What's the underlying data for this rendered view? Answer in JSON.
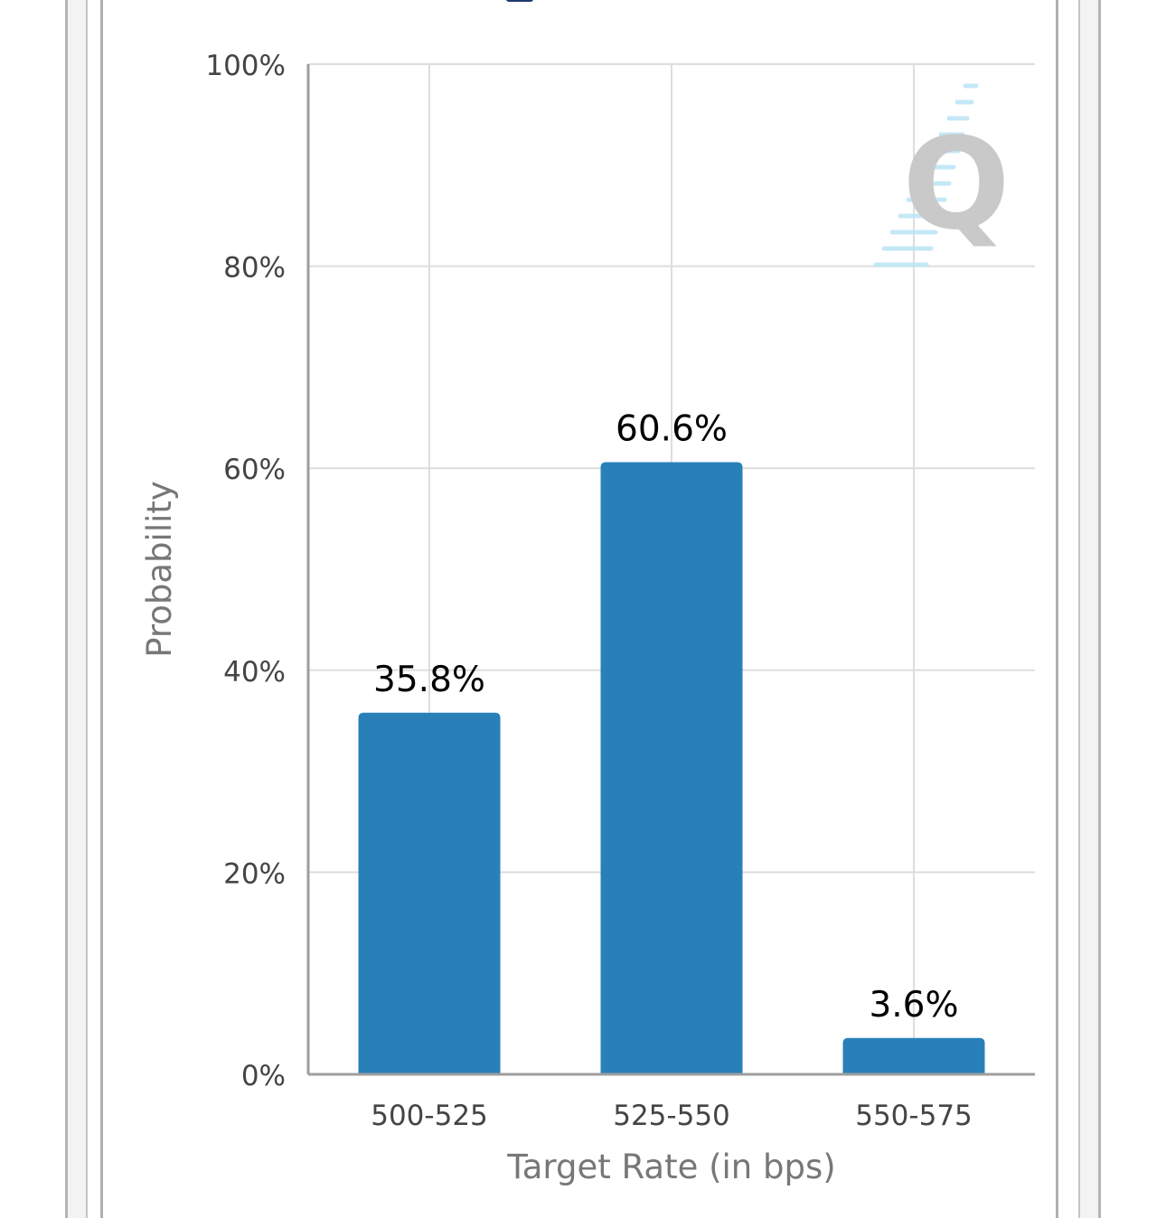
{
  "chart_data": {
    "type": "bar",
    "categories": [
      "500-525",
      "525-550",
      "550-575"
    ],
    "values": [
      35.8,
      60.6,
      3.6
    ],
    "data_labels": [
      "35.8%",
      "60.6%",
      "3.6%"
    ],
    "title": "",
    "xlabel": "Target Rate (in bps)",
    "ylabel": "Probability",
    "ylim": [
      0,
      100
    ],
    "y_ticks": [
      0,
      20,
      40,
      60,
      80,
      100
    ],
    "y_tick_labels": [
      "0%",
      "20%",
      "40%",
      "60%",
      "80%",
      "100%"
    ],
    "grid": true,
    "legend": "none",
    "colors": {
      "bar": "#2980b9",
      "grid": "#dddddd",
      "axis": "#9e9e9e",
      "tick_text": "#444444",
      "axis_title": "#777777",
      "data_label": "#000000"
    }
  },
  "watermark": {
    "glyph": "Q"
  }
}
